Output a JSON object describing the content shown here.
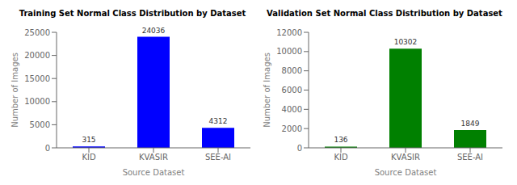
{
  "chart_data": [
    {
      "type": "bar",
      "title": "Training Set Normal Class Distribution by Dataset",
      "categories": [
        "KID",
        "KVASIR",
        "SEE-AI"
      ],
      "values": [
        315,
        24036,
        4312
      ],
      "color": "blue",
      "xlabel": "Source Dataset",
      "ylabel": "Number of Images",
      "ylim": [
        0,
        25000
      ],
      "yticks": [
        0,
        5000,
        10000,
        15000,
        20000,
        25000
      ],
      "data_labels": true,
      "grid": false
    },
    {
      "type": "bar",
      "title": "Validation Set Normal Class Distribution by Dataset",
      "categories": [
        "KID",
        "KVASIR",
        "SEE-AI"
      ],
      "values": [
        136,
        10302,
        1849
      ],
      "color": "green",
      "xlabel": "Source Dataset",
      "ylabel": "Number of Images",
      "ylim": [
        0,
        12000
      ],
      "yticks": [
        0,
        2000,
        4000,
        6000,
        8000,
        10000,
        12000
      ],
      "data_labels": true,
      "grid": false
    }
  ]
}
